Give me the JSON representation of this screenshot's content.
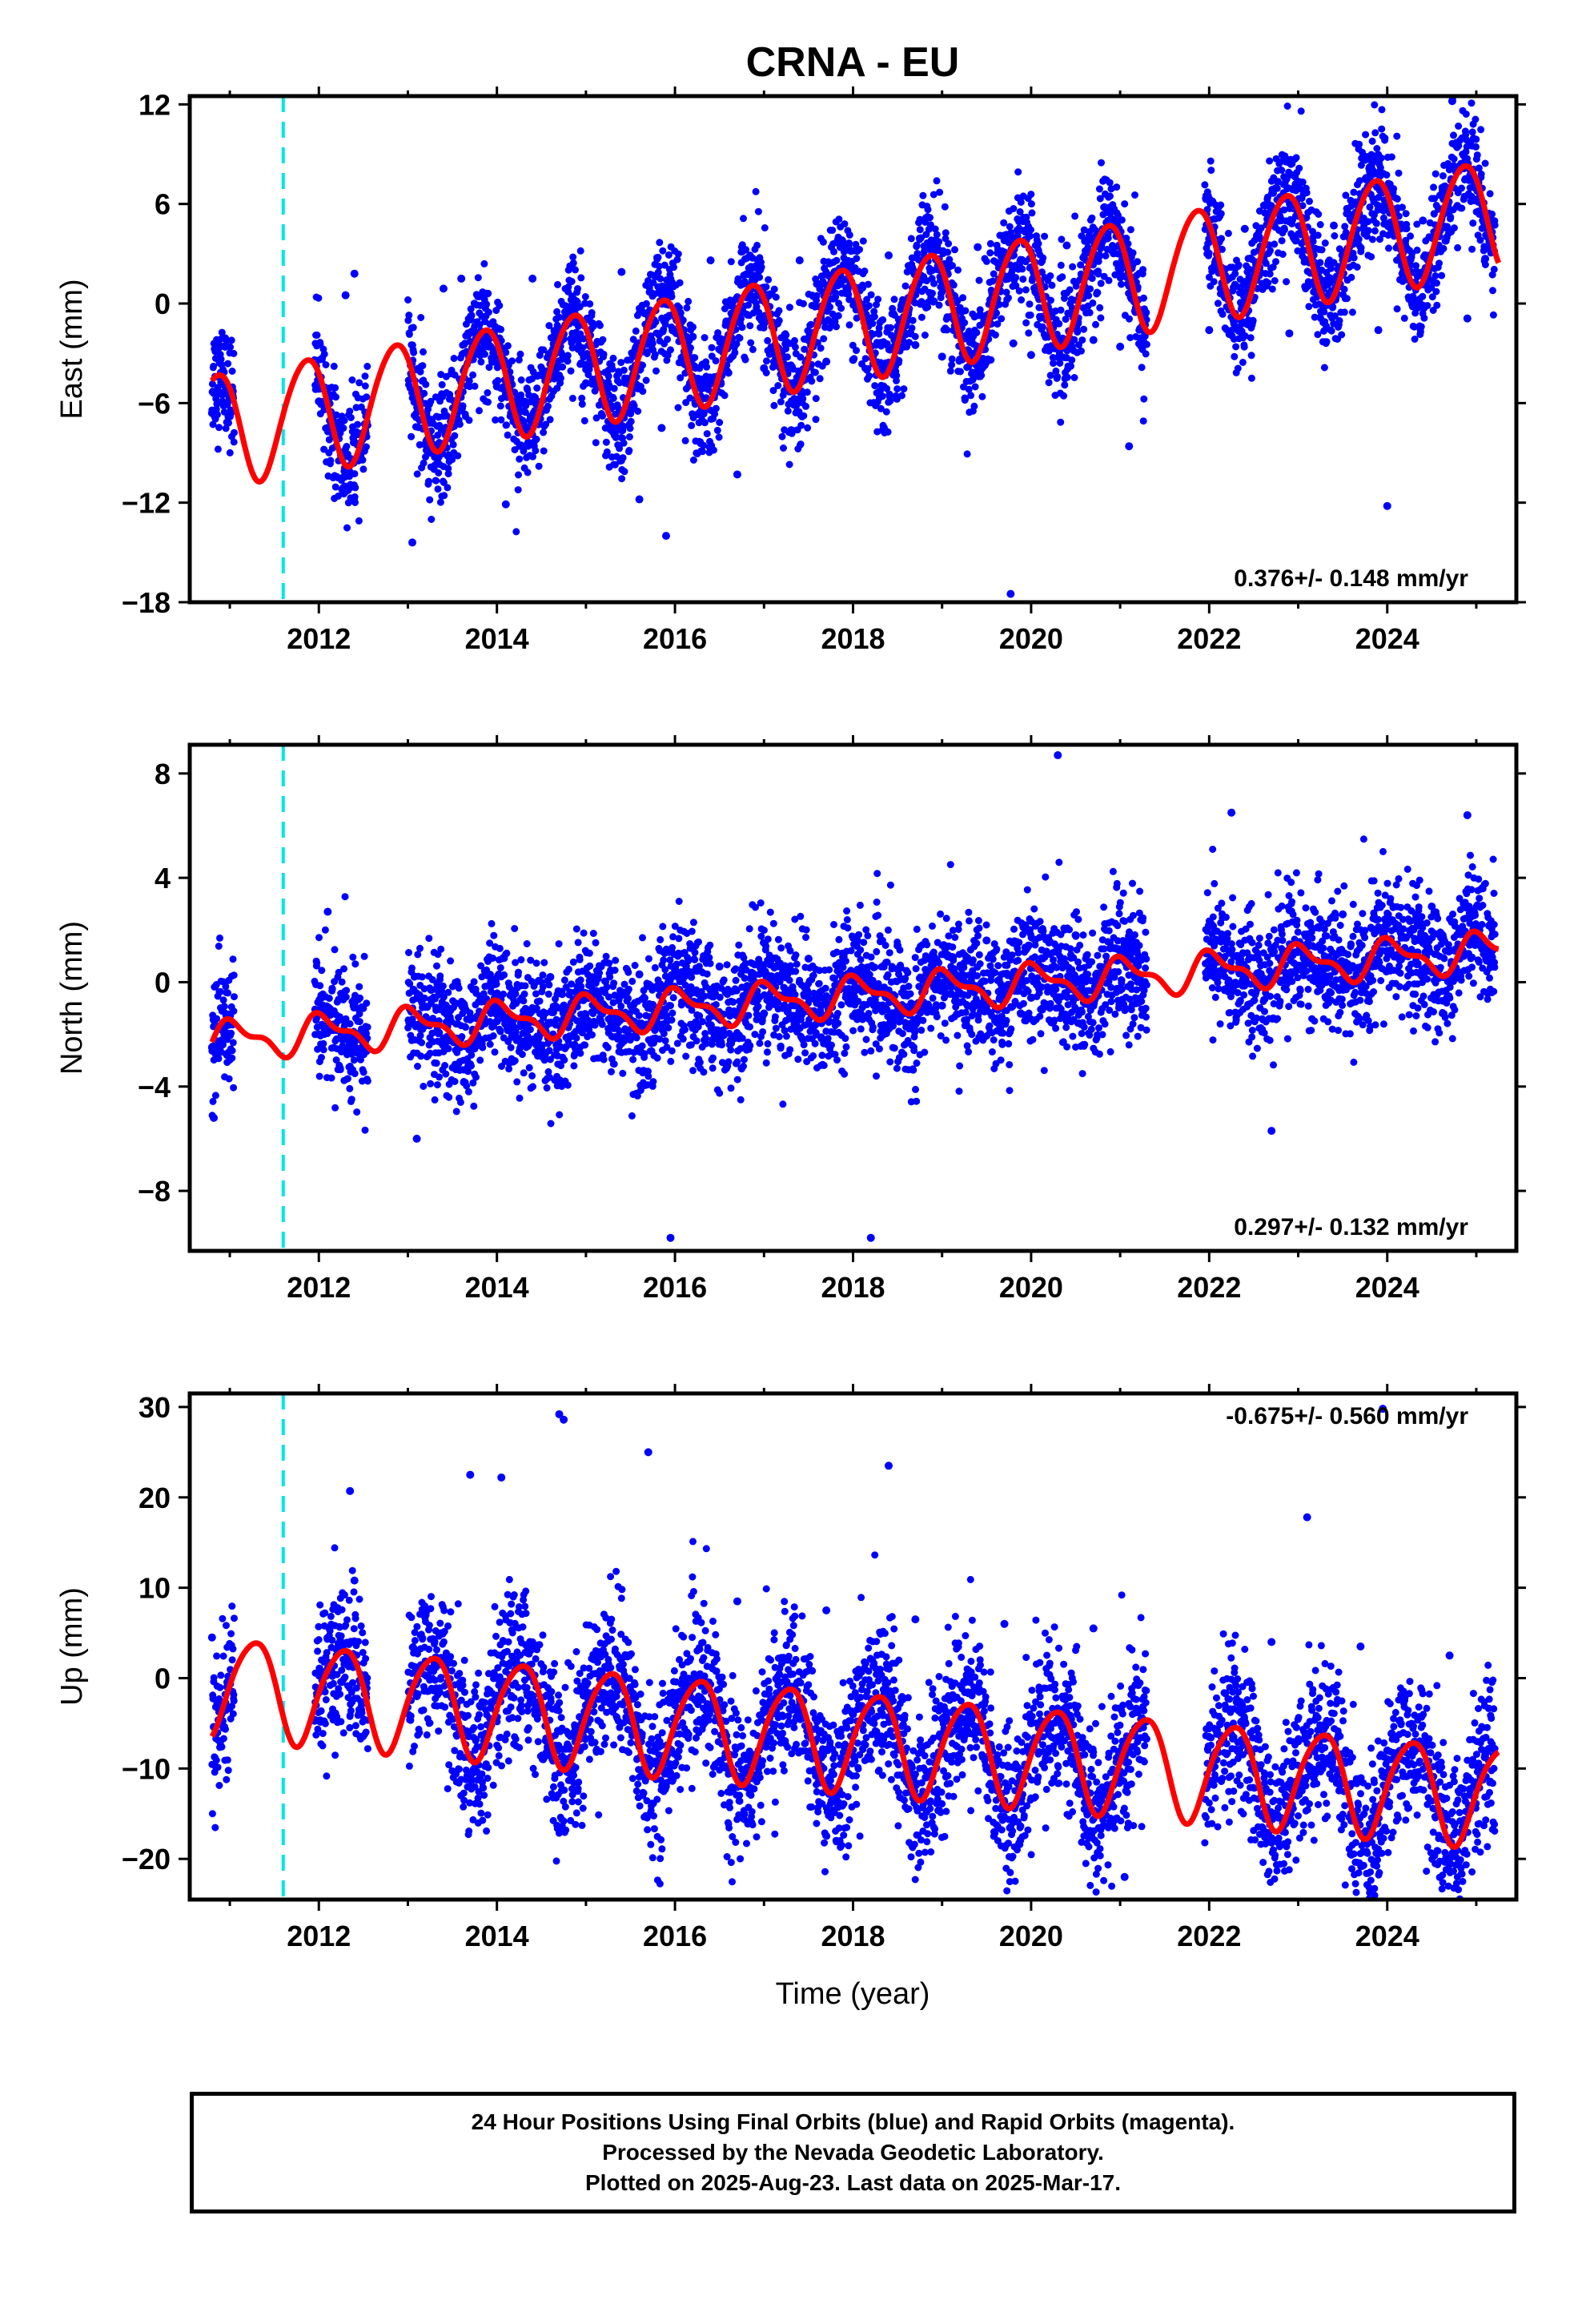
{
  "figure": {
    "title": "CRNA - EU",
    "xlabel": "Time (year)",
    "caption_lines": [
      "24 Hour Positions Using Final Orbits (blue) and Rapid Orbits (magenta).",
      "Processed by the Nevada Geodetic Laboratory.",
      "Plotted on 2025-Aug-23. Last data on 2025-Mar-17."
    ],
    "colors": {
      "data": "#0000ff",
      "model": "#ff0000",
      "event_line": "#00e5e5",
      "frame": "#000000"
    }
  },
  "chart_data": [
    {
      "type": "scatter",
      "component": "east",
      "ylabel": "East (mm)",
      "xlim": [
        2010.55,
        2025.45
      ],
      "ylim": [
        -18,
        12.5
      ],
      "yticks": [
        12,
        6,
        0,
        -6,
        -12,
        -18
      ],
      "xticks": [
        2012,
        2014,
        2016,
        2018,
        2020,
        2022,
        2024
      ],
      "rate_label": "0.376+/- 0.148 mm/yr",
      "rate_label_position": "bottom-right",
      "event_line_x": 2011.6,
      "data_gaps": [
        [
          2011.05,
          2011.95
        ],
        [
          2012.55,
          2013.0
        ],
        [
          2021.3,
          2021.95
        ]
      ],
      "series": [
        {
          "name": "Final Orbits (blue)",
          "style": "points",
          "x": [
            2010.8,
            2011.0,
            2012.0,
            2012.3,
            2012.4,
            2013.1,
            2013.4,
            2013.6,
            2014.0,
            2014.1,
            2014.4,
            2015.0,
            2015.4,
            2015.6,
            2015.9,
            2016.2,
            2016.4,
            2016.7,
            2017.0,
            2017.4,
            2017.7,
            2018.0,
            2018.4,
            2018.7,
            2019.0,
            2019.4,
            2019.8,
            2020.0,
            2020.4,
            2020.7,
            2021.0,
            2021.1,
            2022.0,
            2022.4,
            2022.9,
            2023.4,
            2023.9,
            2024.0,
            2024.4,
            2024.9,
            2025.1,
            2024.73,
            2019.77,
            2015.85,
            2013.05
          ],
          "y": [
            -6.6,
            -6.8,
            -5.9,
            0.5,
            1.8,
            -5.5,
            0.9,
            1.5,
            -5.0,
            -12.1,
            1.5,
            -4.8,
            1.9,
            -11.8,
            -14.0,
            -2.0,
            2.6,
            -10.3,
            -3.9,
            2.6,
            -3.5,
            -3.4,
            2.9,
            -2.5,
            -3.2,
            3.4,
            -2.4,
            -3.1,
            3.5,
            -2.2,
            -2.6,
            -8.6,
            -1.6,
            4.5,
            -1.8,
            4.7,
            -1.6,
            -12.2,
            5.0,
            -0.9,
            2.7,
            12.2,
            -17.5,
            -7.5,
            -14.4
          ]
        },
        {
          "name": "Model",
          "style": "line",
          "offset": -8.3,
          "rate": 0.9,
          "annual_amplitude": 3.4,
          "annual_phase": 2.5,
          "semiannual_amplitude": 0.3,
          "semiannual_phase": 1.0,
          "x_start": 2010.8,
          "x_end": 2025.25
        }
      ]
    },
    {
      "type": "scatter",
      "component": "north",
      "ylabel": "North (mm)",
      "xlim": [
        2010.55,
        2025.45
      ],
      "ylim": [
        -10.3,
        9.1
      ],
      "yticks": [
        8,
        4,
        0,
        -4,
        -8
      ],
      "xticks": [
        2012,
        2014,
        2016,
        2018,
        2020,
        2022,
        2024
      ],
      "rate_label": "0.297+/- 0.132 mm/yr",
      "rate_label_position": "bottom-right",
      "event_line_x": 2011.6,
      "data_gaps": [
        [
          2011.05,
          2011.95
        ],
        [
          2012.55,
          2013.0
        ],
        [
          2021.3,
          2021.95
        ]
      ],
      "series": [
        {
          "name": "Final Orbits (blue)",
          "style": "points",
          "x": [
            2010.8,
            2010.82,
            2012.0,
            2012.1,
            2012.4,
            2013.1,
            2013.6,
            2014.0,
            2014.6,
            2015.0,
            2015.6,
            2015.95,
            2016.5,
            2017.0,
            2017.5,
            2018.0,
            2018.2,
            2018.5,
            2019.0,
            2019.5,
            2020.0,
            2020.3,
            2020.5,
            2021.0,
            2022.1,
            2022.25,
            2022.7,
            2023.0,
            2023.5,
            2024.0,
            2024.5,
            2024.9,
            2025.1
          ],
          "y": [
            -2.5,
            -5.2,
            -2.0,
            2.7,
            -0.8,
            -6.0,
            -0.8,
            -1.5,
            0.2,
            -1.7,
            0.3,
            -9.8,
            0.6,
            -1.2,
            0.9,
            -1.3,
            -9.8,
            1.4,
            -0.9,
            1.6,
            -0.6,
            8.7,
            1.8,
            -0.3,
            0.8,
            6.5,
            -5.7,
            0.5,
            2.6,
            1.2,
            2.9,
            6.4,
            1.5
          ]
        },
        {
          "name": "Model",
          "style": "line",
          "offset": -2.45,
          "rate": 0.24,
          "annual_amplitude": 0.65,
          "annual_phase": 1.2,
          "semiannual_amplitude": 0.3,
          "semiannual_phase": 2.5,
          "x_start": 2010.8,
          "x_end": 2025.25
        }
      ]
    },
    {
      "type": "scatter",
      "component": "up",
      "ylabel": "Up (mm)",
      "xlim": [
        2010.55,
        2025.45
      ],
      "ylim": [
        -24.5,
        31.5
      ],
      "yticks": [
        30,
        20,
        10,
        0,
        -10,
        -20
      ],
      "xticks": [
        2012,
        2014,
        2016,
        2018,
        2020,
        2022,
        2024
      ],
      "rate_label": "-0.675+/- 0.560 mm/yr",
      "rate_label_position": "top-right",
      "event_line_x": 2011.6,
      "data_gaps": [
        [
          2011.05,
          2011.95
        ],
        [
          2012.55,
          2013.0
        ],
        [
          2021.3,
          2021.95
        ]
      ],
      "series": [
        {
          "name": "Final Orbits (blue)",
          "style": "points",
          "x": [
            2010.8,
            2010.82,
            2012.0,
            2012.35,
            2012.4,
            2013.1,
            2013.7,
            2014.05,
            2014.7,
            2014.75,
            2015.0,
            2015.7,
            2016.0,
            2016.7,
            2017.0,
            2017.7,
            2018.0,
            2018.4,
            2018.7,
            2019.0,
            2019.7,
            2020.0,
            2020.7,
            2021.05,
            2022.0,
            2022.7,
            2023.0,
            2023.1,
            2023.7,
            2023.95,
            2024.0,
            2024.7,
            2025.1
          ],
          "y": [
            4.5,
            -5.4,
            0.5,
            20.7,
            10.8,
            -2.0,
            22.5,
            22.2,
            29.2,
            28.6,
            -3.0,
            25.0,
            -3.0,
            8.5,
            -3.5,
            7.5,
            -4.0,
            23.5,
            6.5,
            -4.5,
            6.0,
            -5.0,
            5.5,
            -22.0,
            -6.5,
            4.0,
            -7.0,
            17.8,
            3.5,
            29.8,
            -8.0,
            2.5,
            -8.5
          ]
        },
        {
          "name": "Model",
          "style": "line",
          "offset": -0.05,
          "rate": -0.85,
          "annual_amplitude": 5.5,
          "annual_phase": -0.1,
          "semiannual_amplitude": 0.7,
          "semiannual_phase": 2.0,
          "x_start": 2010.8,
          "x_end": 2025.25
        }
      ]
    }
  ]
}
